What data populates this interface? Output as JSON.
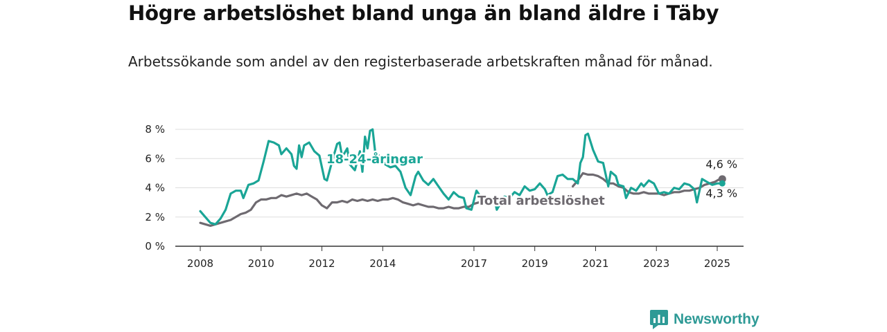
{
  "title": "Högre arbetslöshet bland unga än bland äldre i Täby",
  "subtitle": "Arbetssökande som andel av den registerbaserade arbetskraften månad för månad.",
  "brand": {
    "name": "Newsworthy",
    "icon": "newsworthy-logo-icon",
    "color": "#2e9a96"
  },
  "chart_data": {
    "type": "line",
    "title": "Högre arbetslöshet bland unga än bland äldre i Täby",
    "subtitle": "Arbetssökande som andel av den registerbaserade arbetskraften månad för månad.",
    "xlabel": "",
    "ylabel": "",
    "x_ticks": [
      "2008",
      "2010",
      "2012",
      "2014",
      "2017",
      "2019",
      "2021",
      "2023",
      "2025"
    ],
    "y_ticks": [
      "0 %",
      "2 %",
      "4 %",
      "6 %",
      "8 %"
    ],
    "ylim": [
      0,
      8
    ],
    "xlim": [
      "2008-01",
      "2025-03"
    ],
    "grid": true,
    "series": [
      {
        "name": "18-24-åringar",
        "color": "#1aa596",
        "end_label": "4,3 %",
        "points": [
          [
            "2008-01",
            2.4
          ],
          [
            "2008-03",
            2.0
          ],
          [
            "2008-05",
            1.6
          ],
          [
            "2008-07",
            1.5
          ],
          [
            "2008-09",
            1.9
          ],
          [
            "2008-11",
            2.5
          ],
          [
            "2009-01",
            3.6
          ],
          [
            "2009-03",
            3.8
          ],
          [
            "2009-05",
            3.8
          ],
          [
            "2009-06",
            3.3
          ],
          [
            "2009-08",
            4.2
          ],
          [
            "2009-10",
            4.3
          ],
          [
            "2009-12",
            4.5
          ],
          [
            "2010-02",
            5.8
          ],
          [
            "2010-04",
            7.2
          ],
          [
            "2010-06",
            7.1
          ],
          [
            "2010-08",
            6.9
          ],
          [
            "2010-09",
            6.3
          ],
          [
            "2010-11",
            6.7
          ],
          [
            "2011-01",
            6.3
          ],
          [
            "2011-02",
            5.5
          ],
          [
            "2011-03",
            5.3
          ],
          [
            "2011-04",
            6.9
          ],
          [
            "2011-05",
            6.1
          ],
          [
            "2011-06",
            6.9
          ],
          [
            "2011-08",
            7.1
          ],
          [
            "2011-10",
            6.5
          ],
          [
            "2011-12",
            6.2
          ],
          [
            "2012-02",
            4.6
          ],
          [
            "2012-03",
            4.5
          ],
          [
            "2012-05",
            5.8
          ],
          [
            "2012-07",
            7.0
          ],
          [
            "2012-08",
            7.1
          ],
          [
            "2012-09",
            6.1
          ],
          [
            "2012-11",
            6.7
          ],
          [
            "2012-12",
            5.6
          ],
          [
            "2013-02",
            5.2
          ],
          [
            "2013-04",
            6.5
          ],
          [
            "2013-05",
            5.1
          ],
          [
            "2013-06",
            7.5
          ],
          [
            "2013-07",
            6.7
          ],
          [
            "2013-08",
            7.9
          ],
          [
            "2013-09",
            8.0
          ],
          [
            "2013-10",
            6.5
          ],
          [
            "2013-12",
            6.1
          ],
          [
            "2014-02",
            5.6
          ],
          [
            "2014-04",
            5.4
          ],
          [
            "2014-06",
            5.5
          ],
          [
            "2014-08",
            5.1
          ],
          [
            "2014-10",
            4.0
          ],
          [
            "2014-12",
            3.5
          ],
          [
            "2015-02",
            4.8
          ],
          [
            "2015-03",
            5.1
          ],
          [
            "2015-05",
            4.5
          ],
          [
            "2015-07",
            4.2
          ],
          [
            "2015-09",
            4.6
          ],
          [
            "2015-11",
            4.1
          ],
          [
            "2016-01",
            3.6
          ],
          [
            "2016-03",
            3.2
          ],
          [
            "2016-05",
            3.7
          ],
          [
            "2016-07",
            3.4
          ],
          [
            "2016-09",
            3.3
          ],
          [
            "2016-10",
            2.6
          ],
          [
            "2016-12",
            2.5
          ],
          [
            "2017-02",
            3.8
          ],
          [
            "2017-04",
            3.3
          ],
          [
            "2017-06",
            3.1
          ],
          [
            "2017-07",
            2.8
          ],
          [
            "2017-09",
            3.3
          ],
          [
            "2017-10",
            2.5
          ],
          [
            "2017-11",
            2.8
          ],
          [
            "2018-01",
            3.4
          ],
          [
            "2018-03",
            3.3
          ],
          [
            "2018-05",
            3.7
          ],
          [
            "2018-07",
            3.5
          ],
          [
            "2018-09",
            4.1
          ],
          [
            "2018-11",
            3.8
          ],
          [
            "2019-01",
            3.9
          ],
          [
            "2019-03",
            4.3
          ],
          [
            "2019-05",
            3.9
          ],
          [
            "2019-06",
            3.5
          ],
          [
            "2019-08",
            3.7
          ],
          [
            "2019-10",
            4.8
          ],
          [
            "2019-12",
            4.9
          ],
          [
            "2020-02",
            4.6
          ],
          [
            "2020-04",
            4.6
          ],
          [
            "2020-06",
            4.3
          ],
          [
            "2020-07",
            5.7
          ],
          [
            "2020-08",
            6.1
          ],
          [
            "2020-09",
            7.6
          ],
          [
            "2020-10",
            7.7
          ],
          [
            "2020-12",
            6.6
          ],
          [
            "2021-02",
            5.8
          ],
          [
            "2021-04",
            5.7
          ],
          [
            "2021-06",
            4.1
          ],
          [
            "2021-07",
            5.1
          ],
          [
            "2021-09",
            4.8
          ],
          [
            "2021-10",
            4.2
          ],
          [
            "2021-12",
            4.1
          ],
          [
            "2022-01",
            3.3
          ],
          [
            "2022-03",
            4.0
          ],
          [
            "2022-05",
            3.8
          ],
          [
            "2022-07",
            4.3
          ],
          [
            "2022-08",
            4.1
          ],
          [
            "2022-10",
            4.5
          ],
          [
            "2022-12",
            4.3
          ],
          [
            "2023-02",
            3.6
          ],
          [
            "2023-04",
            3.7
          ],
          [
            "2023-06",
            3.6
          ],
          [
            "2023-08",
            4.0
          ],
          [
            "2023-10",
            3.9
          ],
          [
            "2023-12",
            4.3
          ],
          [
            "2024-02",
            4.2
          ],
          [
            "2024-04",
            3.9
          ],
          [
            "2024-05",
            3.0
          ],
          [
            "2024-07",
            4.6
          ],
          [
            "2024-09",
            4.4
          ],
          [
            "2024-11",
            4.2
          ],
          [
            "2025-01",
            4.3
          ],
          [
            "2025-03",
            4.3
          ]
        ]
      },
      {
        "name": "Total arbetslöshet",
        "color": "#6e6a70",
        "end_label": "4,6 %",
        "points": [
          [
            "2008-01",
            1.6
          ],
          [
            "2008-03",
            1.5
          ],
          [
            "2008-05",
            1.4
          ],
          [
            "2008-07",
            1.5
          ],
          [
            "2008-09",
            1.6
          ],
          [
            "2008-11",
            1.7
          ],
          [
            "2009-01",
            1.8
          ],
          [
            "2009-03",
            2.0
          ],
          [
            "2009-05",
            2.2
          ],
          [
            "2009-07",
            2.3
          ],
          [
            "2009-09",
            2.5
          ],
          [
            "2009-11",
            3.0
          ],
          [
            "2010-01",
            3.2
          ],
          [
            "2010-03",
            3.2
          ],
          [
            "2010-05",
            3.3
          ],
          [
            "2010-07",
            3.3
          ],
          [
            "2010-09",
            3.5
          ],
          [
            "2010-11",
            3.4
          ],
          [
            "2011-01",
            3.5
          ],
          [
            "2011-03",
            3.6
          ],
          [
            "2011-05",
            3.5
          ],
          [
            "2011-07",
            3.6
          ],
          [
            "2011-09",
            3.4
          ],
          [
            "2011-11",
            3.2
          ],
          [
            "2012-01",
            2.8
          ],
          [
            "2012-03",
            2.6
          ],
          [
            "2012-05",
            3.0
          ],
          [
            "2012-07",
            3.0
          ],
          [
            "2012-09",
            3.1
          ],
          [
            "2012-11",
            3.0
          ],
          [
            "2013-01",
            3.2
          ],
          [
            "2013-03",
            3.1
          ],
          [
            "2013-05",
            3.2
          ],
          [
            "2013-07",
            3.1
          ],
          [
            "2013-09",
            3.2
          ],
          [
            "2013-11",
            3.1
          ],
          [
            "2014-01",
            3.2
          ],
          [
            "2014-03",
            3.2
          ],
          [
            "2014-05",
            3.3
          ],
          [
            "2014-07",
            3.2
          ],
          [
            "2014-09",
            3.0
          ],
          [
            "2014-11",
            2.9
          ],
          [
            "2015-01",
            2.8
          ],
          [
            "2015-03",
            2.9
          ],
          [
            "2015-05",
            2.8
          ],
          [
            "2015-07",
            2.7
          ],
          [
            "2015-09",
            2.7
          ],
          [
            "2015-11",
            2.6
          ],
          [
            "2016-01",
            2.6
          ],
          [
            "2016-03",
            2.7
          ],
          [
            "2016-05",
            2.6
          ],
          [
            "2016-07",
            2.6
          ],
          [
            "2016-09",
            2.7
          ],
          [
            "2016-11",
            2.7
          ],
          [
            "2017-01",
            2.9
          ],
          [
            "2017-03",
            3.0
          ],
          [
            "2017-05",
            3.1
          ],
          [
            "2017-07",
            3.0
          ]
        ],
        "points_after_label": [
          [
            "2020-04",
            4.1
          ],
          [
            "2020-06",
            4.5
          ],
          [
            "2020-08",
            5.0
          ],
          [
            "2020-10",
            4.9
          ],
          [
            "2020-12",
            4.9
          ],
          [
            "2021-02",
            4.8
          ],
          [
            "2021-04",
            4.6
          ],
          [
            "2021-06",
            4.3
          ],
          [
            "2021-08",
            4.3
          ],
          [
            "2021-10",
            4.1
          ],
          [
            "2021-12",
            4.0
          ],
          [
            "2022-02",
            3.7
          ],
          [
            "2022-04",
            3.6
          ],
          [
            "2022-06",
            3.6
          ],
          [
            "2022-08",
            3.7
          ],
          [
            "2022-10",
            3.6
          ],
          [
            "2022-12",
            3.6
          ],
          [
            "2023-02",
            3.6
          ],
          [
            "2023-04",
            3.5
          ],
          [
            "2023-06",
            3.6
          ],
          [
            "2023-08",
            3.7
          ],
          [
            "2023-10",
            3.7
          ],
          [
            "2023-12",
            3.8
          ],
          [
            "2024-02",
            3.8
          ],
          [
            "2024-04",
            3.9
          ],
          [
            "2024-06",
            4.0
          ],
          [
            "2024-08",
            4.2
          ],
          [
            "2024-10",
            4.3
          ],
          [
            "2024-12",
            4.4
          ],
          [
            "2025-02",
            4.6
          ],
          [
            "2025-03",
            4.6
          ]
        ]
      }
    ],
    "annotations": [
      {
        "text": "18-24-åringar",
        "series": "18-24-åringar",
        "color": "#1aa596"
      },
      {
        "text": "Total arbetslöshet",
        "series": "Total arbetslöshet",
        "color": "#6e6a70"
      }
    ]
  }
}
